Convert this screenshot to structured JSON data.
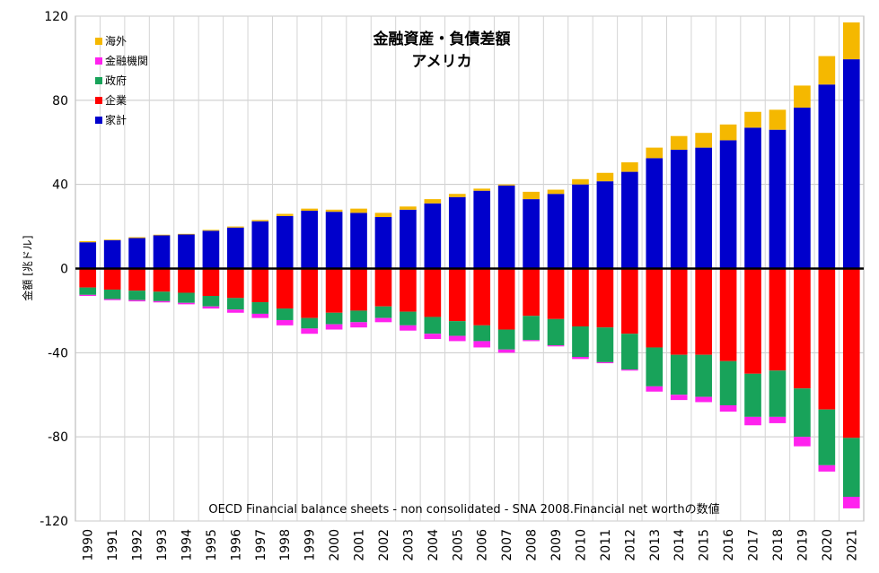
{
  "chart_data": {
    "type": "bar",
    "stacked": true,
    "title": "金融資産・負債差額",
    "subtitle": "アメリカ",
    "ylabel": "金額 [兆ドル]",
    "xlabel": "",
    "note": "OECD Financial balance sheets - non consolidated - SNA 2008.Financial net worthの数値",
    "ylim": [
      -120,
      120
    ],
    "yticks": [
      -120,
      -80,
      -40,
      0,
      40,
      80,
      120
    ],
    "grid": true,
    "legend_position": "top-left",
    "categories": [
      "1990",
      "1991",
      "1992",
      "1993",
      "1994",
      "1995",
      "1996",
      "1997",
      "1998",
      "1999",
      "2000",
      "2001",
      "2002",
      "2003",
      "2004",
      "2005",
      "2006",
      "2007",
      "2008",
      "2009",
      "2010",
      "2011",
      "2012",
      "2013",
      "2014",
      "2015",
      "2016",
      "2017",
      "2018",
      "2019",
      "2020",
      "2021"
    ],
    "series": [
      {
        "name": "家計",
        "color": "#0000cc",
        "values": [
          12.5,
          13.5,
          14.5,
          15.8,
          16.2,
          18.0,
          19.5,
          22.5,
          25.0,
          27.5,
          27.0,
          26.5,
          24.5,
          28.0,
          31.0,
          34.0,
          37.0,
          39.5,
          33.0,
          35.5,
          40.0,
          41.5,
          46.0,
          52.5,
          56.5,
          57.5,
          61.0,
          67.0,
          66.0,
          76.5,
          87.5,
          99.5
        ]
      },
      {
        "name": "企業",
        "color": "#ff0000",
        "values": [
          -9.0,
          -10.0,
          -10.5,
          -11.0,
          -11.5,
          -13.0,
          -14.0,
          -16.0,
          -19.0,
          -23.5,
          -21.0,
          -20.0,
          -18.0,
          -20.5,
          -23.0,
          -25.0,
          -27.0,
          -29.0,
          -22.5,
          -24.0,
          -27.5,
          -28.0,
          -31.0,
          -37.5,
          -41.0,
          -41.0,
          -44.0,
          -50.0,
          -48.5,
          -57.0,
          -67.0,
          -80.5
        ]
      },
      {
        "name": "政府",
        "color": "#18a35a",
        "values": [
          -3.5,
          -4.5,
          -4.5,
          -4.5,
          -4.8,
          -5.0,
          -5.5,
          -5.5,
          -5.5,
          -5.0,
          -5.5,
          -5.5,
          -5.5,
          -6.5,
          -8.0,
          -7.0,
          -7.5,
          -9.5,
          -11.5,
          -12.5,
          -14.5,
          -16.5,
          -17.0,
          -18.5,
          -19.0,
          -20.0,
          -21.0,
          -20.5,
          -22.0,
          -23.0,
          -26.5,
          -28.0
        ]
      },
      {
        "name": "金融機関",
        "color": "#ff22ee",
        "values": [
          -0.5,
          -0.5,
          -0.6,
          -0.6,
          -0.7,
          -1.0,
          -1.5,
          -2.0,
          -2.5,
          -2.5,
          -2.5,
          -2.5,
          -2.0,
          -2.5,
          -2.5,
          -2.5,
          -3.0,
          -1.5,
          -0.5,
          -0.5,
          -1.0,
          -0.5,
          -0.5,
          -2.5,
          -2.5,
          -2.5,
          -3.0,
          -4.0,
          -3.0,
          -4.5,
          -3.0,
          -5.5
        ]
      },
      {
        "name": "海外",
        "color": "#f5b800",
        "values": [
          0.5,
          0.3,
          0.4,
          0.3,
          0.3,
          0.4,
          0.5,
          0.6,
          1.0,
          1.0,
          1.0,
          2.0,
          2.0,
          1.5,
          2.0,
          1.5,
          1.0,
          0.5,
          3.5,
          2.0,
          2.5,
          4.0,
          4.5,
          5.0,
          6.5,
          7.0,
          7.5,
          7.5,
          9.5,
          10.5,
          13.5,
          17.5
        ]
      }
    ],
    "legend_order": [
      "海外",
      "金融機関",
      "政府",
      "企業",
      "家計"
    ]
  }
}
